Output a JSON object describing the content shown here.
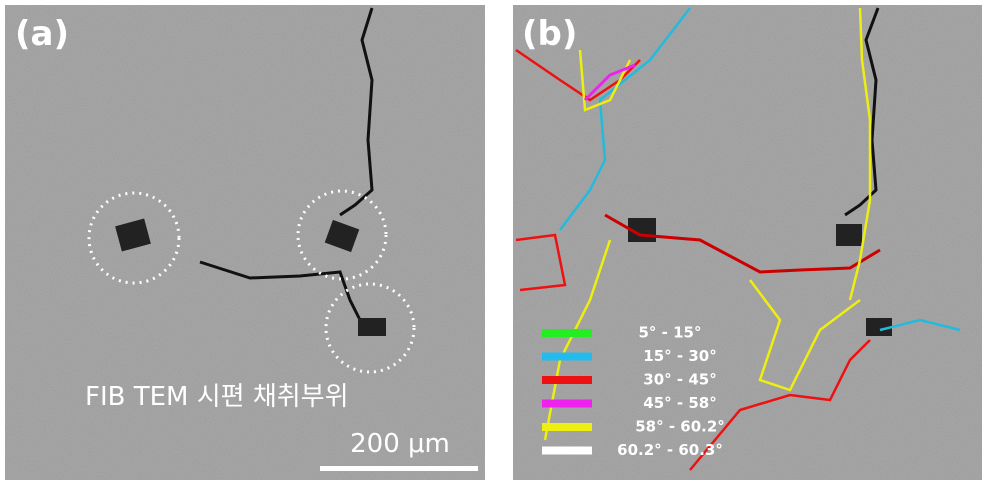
{
  "panels": [
    {
      "label": "(a)",
      "annotation": "FIB TEM 시편 채취부위",
      "scale_bar": "200 μm"
    },
    {
      "label": "(b)",
      "legend": [
        {
          "label": "5° - 15°",
          "color": "#22ee22"
        },
        {
          "label": "15° - 30°",
          "color": "#22bbee"
        },
        {
          "label": "30° - 45°",
          "color": "#ee1111"
        },
        {
          "label": "45° - 58°",
          "color": "#ee22ee"
        },
        {
          "label": "58° - 60.2°",
          "color": "#eeee11"
        },
        {
          "label": "60.2° - 60.3°",
          "color": "#ffffff"
        }
      ]
    }
  ]
}
